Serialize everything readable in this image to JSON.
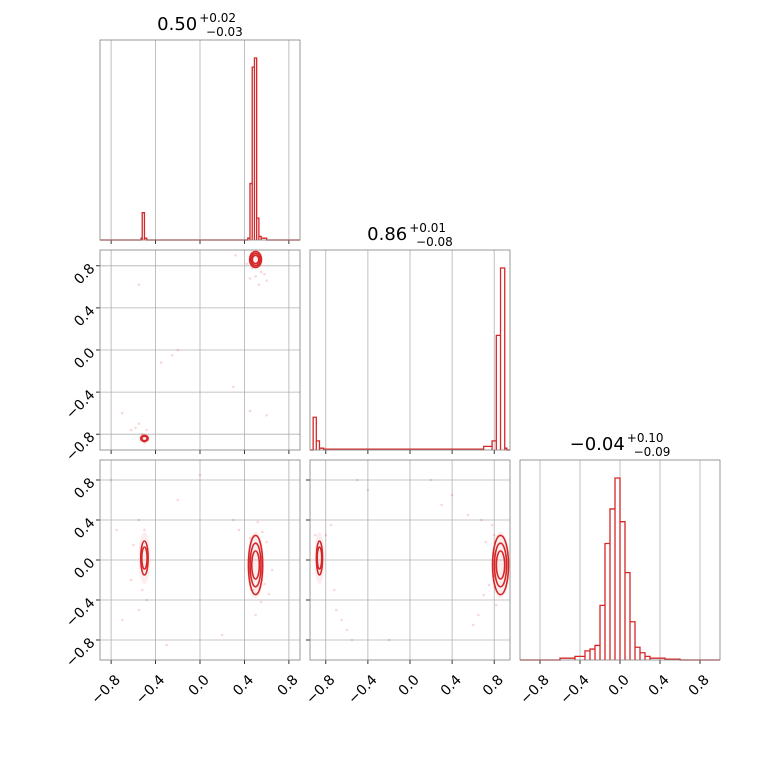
{
  "chart_data": {
    "type": "corner",
    "color": "#d62728",
    "grid": true,
    "parameters": [
      {
        "index": 0,
        "median": "0.50",
        "plus": "+0.02",
        "minus": "−0.03",
        "range": [
          -0.9,
          0.9
        ]
      },
      {
        "index": 1,
        "median": "0.86",
        "plus": "+0.01",
        "minus": "−0.08",
        "range": [
          -0.95,
          0.95
        ]
      },
      {
        "index": 2,
        "median": "−0.04",
        "plus": "+0.10",
        "minus": "−0.09",
        "range": [
          -1.0,
          1.0
        ]
      }
    ],
    "tick_values": [
      -0.8,
      -0.4,
      0.0,
      0.4,
      0.8
    ],
    "tick_labels": [
      "−0.8",
      "−0.4",
      "0.0",
      "0.4",
      "0.8"
    ],
    "hist_1d": [
      {
        "param": 0,
        "bins": [
          [
            -0.55,
            -0.53,
            0.0
          ],
          [
            -0.53,
            -0.52,
            0.01
          ],
          [
            -0.52,
            -0.5,
            0.15
          ],
          [
            -0.5,
            -0.48,
            0.01
          ],
          [
            0.43,
            0.45,
            0.01
          ],
          [
            0.45,
            0.47,
            0.31
          ],
          [
            0.47,
            0.49,
            0.95
          ],
          [
            0.49,
            0.51,
            1.0
          ],
          [
            0.51,
            0.53,
            0.12
          ],
          [
            0.53,
            0.55,
            0.02
          ],
          [
            0.55,
            0.6,
            0.01
          ]
        ]
      },
      {
        "param": 1,
        "bins": [
          [
            -0.92,
            -0.89,
            0.18
          ],
          [
            -0.89,
            -0.86,
            0.05
          ],
          [
            -0.86,
            -0.82,
            0.01
          ],
          [
            -0.82,
            0.7,
            0.005
          ],
          [
            0.7,
            0.78,
            0.02
          ],
          [
            0.78,
            0.82,
            0.05
          ],
          [
            0.82,
            0.86,
            0.63
          ],
          [
            0.86,
            0.9,
            1.0
          ],
          [
            0.9,
            0.92,
            0.01
          ]
        ]
      },
      {
        "param": 2,
        "bins": [
          [
            -0.6,
            -0.45,
            0.01
          ],
          [
            -0.45,
            -0.35,
            0.02
          ],
          [
            -0.35,
            -0.3,
            0.05
          ],
          [
            -0.3,
            -0.25,
            0.06
          ],
          [
            -0.25,
            -0.2,
            0.08
          ],
          [
            -0.2,
            -0.15,
            0.3
          ],
          [
            -0.15,
            -0.1,
            0.64
          ],
          [
            -0.1,
            -0.05,
            0.83
          ],
          [
            -0.05,
            0.0,
            1.0
          ],
          [
            0.0,
            0.05,
            0.76
          ],
          [
            0.05,
            0.1,
            0.48
          ],
          [
            0.1,
            0.15,
            0.21
          ],
          [
            0.15,
            0.2,
            0.07
          ],
          [
            0.2,
            0.25,
            0.04
          ],
          [
            0.25,
            0.3,
            0.02
          ],
          [
            0.3,
            0.45,
            0.01
          ],
          [
            0.45,
            0.6,
            0.005
          ]
        ]
      }
    ],
    "hist_2d": [
      {
        "x_param": 0,
        "y_param": 1,
        "modes": [
          {
            "x": 0.5,
            "y": 0.86,
            "sx": 0.02,
            "sy": 0.03,
            "levels": [
              1,
              2,
              3
            ]
          },
          {
            "x": -0.5,
            "y": -0.84,
            "sx": 0.015,
            "sy": 0.012,
            "levels": [
              1,
              2
            ]
          }
        ],
        "points": [
          [
            0.45,
            0.68
          ],
          [
            0.53,
            0.62
          ],
          [
            0.47,
            0.78
          ],
          [
            0.58,
            0.72
          ],
          [
            0.42,
            0.82
          ],
          [
            0.55,
            0.74
          ],
          [
            0.6,
            0.66
          ],
          [
            0.5,
            0.7
          ],
          [
            -0.52,
            -0.8
          ],
          [
            -0.58,
            -0.74
          ],
          [
            -0.48,
            -0.76
          ],
          [
            -0.55,
            -0.7
          ],
          [
            -0.62,
            -0.76
          ],
          [
            -0.5,
            -0.88
          ],
          [
            -0.2,
            0.0
          ],
          [
            -0.25,
            -0.05
          ],
          [
            -0.35,
            -0.12
          ],
          [
            -0.55,
            0.62
          ],
          [
            0.3,
            -0.35
          ],
          [
            0.45,
            -0.58
          ],
          [
            0.6,
            -0.62
          ],
          [
            0.32,
            0.9
          ],
          [
            -0.7,
            -0.6
          ]
        ]
      },
      {
        "x_param": 0,
        "y_param": 2,
        "modes": [
          {
            "x": 0.5,
            "y": -0.05,
            "sx": 0.025,
            "sy": 0.13,
            "levels": [
              1,
              2,
              3
            ]
          },
          {
            "x": -0.5,
            "y": 0.02,
            "sx": 0.015,
            "sy": 0.1,
            "levels": [
              1,
              2
            ]
          }
        ],
        "points": [
          [
            0.52,
            0.38
          ],
          [
            0.56,
            0.28
          ],
          [
            0.6,
            0.18
          ],
          [
            0.58,
            -0.24
          ],
          [
            0.62,
            -0.34
          ],
          [
            0.55,
            -0.42
          ],
          [
            0.48,
            -0.3
          ],
          [
            0.65,
            -0.1
          ],
          [
            0.45,
            0.22
          ],
          [
            0.5,
            -0.55
          ],
          [
            0.35,
            0.3
          ],
          [
            -0.55,
            0.4
          ],
          [
            -0.5,
            0.3
          ],
          [
            -0.52,
            -0.3
          ],
          [
            -0.48,
            -0.4
          ],
          [
            -0.55,
            -0.5
          ],
          [
            -0.6,
            0.15
          ],
          [
            -0.62,
            -0.2
          ],
          [
            -0.2,
            0.6
          ],
          [
            0.3,
            0.4
          ],
          [
            -0.75,
            0.3
          ],
          [
            -0.7,
            -0.6
          ],
          [
            0.2,
            -0.75
          ],
          [
            -0.3,
            -0.85
          ],
          [
            0.0,
            0.85
          ],
          [
            -0.8,
            0.8
          ]
        ]
      },
      {
        "x_param": 1,
        "y_param": 2,
        "modes": [
          {
            "x": 0.86,
            "y": -0.05,
            "sx": 0.03,
            "sy": 0.13,
            "levels": [
              1,
              2,
              3
            ]
          },
          {
            "x": -0.86,
            "y": 0.02,
            "sx": 0.012,
            "sy": 0.1,
            "levels": [
              1,
              2
            ]
          }
        ],
        "points": [
          [
            0.78,
            0.35
          ],
          [
            0.8,
            0.25
          ],
          [
            0.72,
            0.18
          ],
          [
            0.75,
            -0.25
          ],
          [
            0.7,
            -0.35
          ],
          [
            0.82,
            -0.45
          ],
          [
            0.65,
            -0.55
          ],
          [
            0.6,
            -0.65
          ],
          [
            0.55,
            0.45
          ],
          [
            0.68,
            0.4
          ],
          [
            0.3,
            0.55
          ],
          [
            -0.75,
            0.35
          ],
          [
            -0.8,
            0.25
          ],
          [
            -0.72,
            -0.3
          ],
          [
            -0.7,
            -0.5
          ],
          [
            -0.65,
            -0.6
          ],
          [
            -0.6,
            -0.7
          ],
          [
            -0.55,
            -0.8
          ],
          [
            -0.5,
            0.8
          ],
          [
            -0.4,
            0.7
          ],
          [
            -0.9,
            0.25
          ],
          [
            0.4,
            0.65
          ],
          [
            0.2,
            0.8
          ],
          [
            -0.2,
            -0.8
          ]
        ]
      }
    ]
  }
}
